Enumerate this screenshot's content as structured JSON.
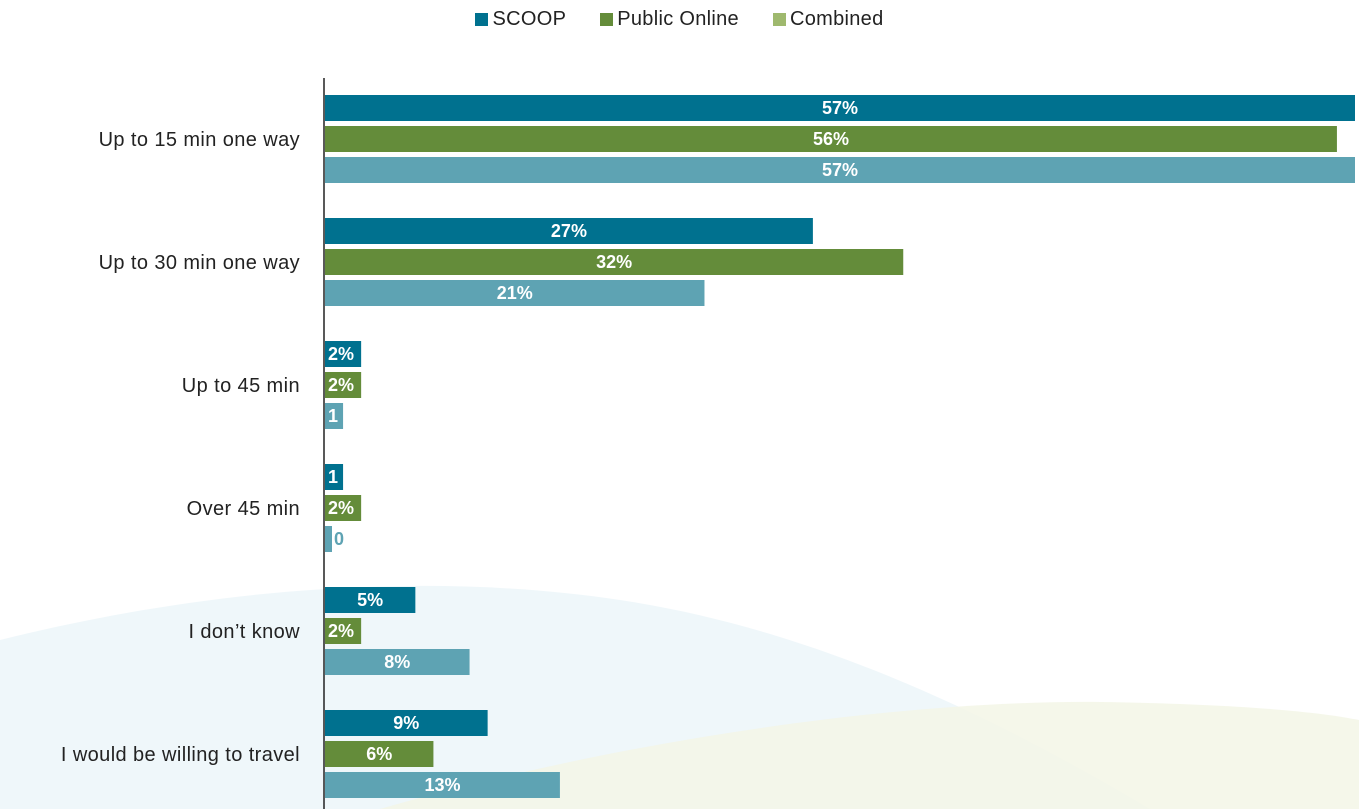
{
  "legend": [
    {
      "label": "SCOOP",
      "color": "#00718f"
    },
    {
      "label": "Public Online",
      "color": "#648c3a"
    },
    {
      "label": "Combined",
      "color": "#9fb96e"
    }
  ],
  "chart_data": {
    "type": "bar",
    "orientation": "horizontal",
    "categories": [
      "Up to 15 min one way",
      "Up to 30 min one way",
      "Up to 45 min",
      "Over 45 min",
      "I don’t know",
      "I would be willing to travel"
    ],
    "series": [
      {
        "name": "SCOOP",
        "color": "#00718f",
        "values": [
          57,
          27,
          2,
          1,
          5,
          9
        ],
        "labels": [
          "57%",
          "27%",
          "2%",
          "1",
          "5%",
          "9%"
        ]
      },
      {
        "name": "Public Online",
        "color": "#648c3a",
        "values": [
          56,
          32,
          2,
          2,
          2,
          6
        ],
        "labels": [
          "56%",
          "32%",
          "2%",
          "2%",
          "2%",
          "6%"
        ]
      },
      {
        "name": "Combined",
        "color": "#5ea3b3",
        "values": [
          57,
          21,
          1,
          0,
          8,
          13
        ],
        "labels": [
          "57%",
          "21%",
          "1",
          "0",
          "8%",
          "13%"
        ]
      }
    ],
    "xlim": [
      0,
      57
    ],
    "grid": false,
    "legend_position": "top-center"
  }
}
